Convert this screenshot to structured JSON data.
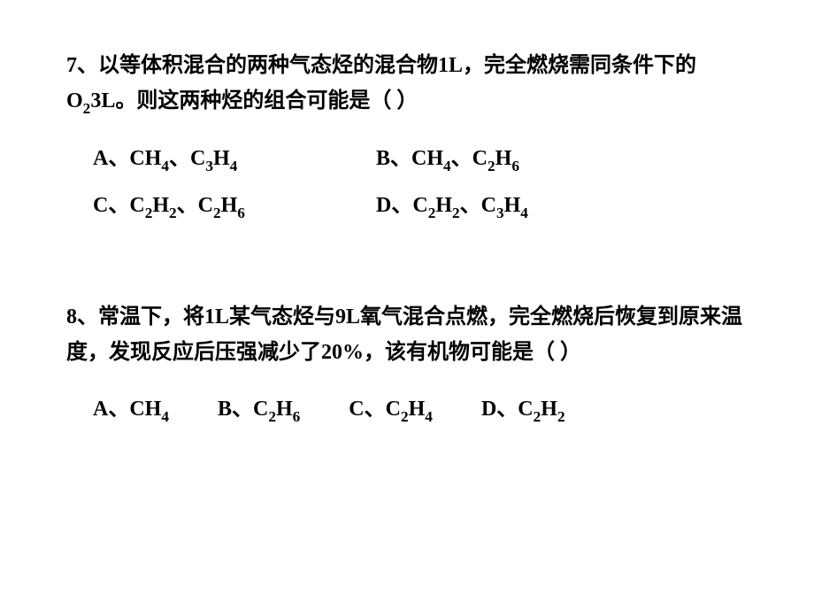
{
  "q7": {
    "number": "7",
    "stem_part1": "、以等体积混合的两种气态烃的混合物1L，完全燃烧需同条件下的O",
    "stem_sub1": "2",
    "stem_part2": "3L。则这两种烃的组合可能是（    ）",
    "options": {
      "A": {
        "prefix": "A、",
        "c1_label": "CH",
        "c1_sub": "4",
        "sep": "、",
        "c2_label_a": "C",
        "c2_sub_a": "3",
        "c2_label_b": "H",
        "c2_sub_b": "4"
      },
      "B": {
        "prefix": "B、",
        "c1_label": "CH",
        "c1_sub": "4",
        "sep": "、",
        "c2_label_a": "C",
        "c2_sub_a": "2",
        "c2_label_b": "H",
        "c2_sub_b": "6"
      },
      "C": {
        "prefix": "C、",
        "c1_label_a": "C",
        "c1_sub_a": "2",
        "c1_label_b": "H",
        "c1_sub_b": "2",
        "sep": "、",
        "c2_label_a": "C",
        "c2_sub_a": "2",
        "c2_label_b": "H",
        "c2_sub_b": "6"
      },
      "D": {
        "prefix": "D、",
        "c1_label_a": "C",
        "c1_sub_a": "2",
        "c1_label_b": "H",
        "c1_sub_b": "2",
        "sep": "、",
        "c2_label_a": "C",
        "c2_sub_a": "3",
        "c2_label_b": "H",
        "c2_sub_b": "4"
      }
    }
  },
  "q8": {
    "number": "8",
    "stem": "、常温下，将1L某气态烃与9L氧气混合点燃，完全燃烧后恢复到原来温度，发现反应后压强减少了20%，该有机物可能是（    ）",
    "options": {
      "A": {
        "prefix": "A、",
        "label": "CH",
        "sub": "4"
      },
      "B": {
        "prefix": "B、",
        "label_a": "C",
        "sub_a": "2",
        "label_b": "H",
        "sub_b": "6"
      },
      "C": {
        "prefix": "C、",
        "label_a": "C",
        "sub_a": "2",
        "label_b": "H",
        "sub_b": "4"
      },
      "D": {
        "prefix": "D、",
        "label_a": "C",
        "sub_a": "2",
        "label_b": "H",
        "sub_b": "2"
      }
    }
  }
}
